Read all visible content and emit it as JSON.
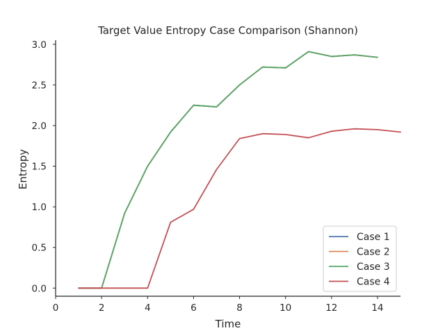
{
  "chart_data": {
    "type": "line",
    "title": "Target Value Entropy Case Comparison (Shannon)",
    "xlabel": "Time",
    "ylabel": "Entropy",
    "xlim": [
      0,
      15
    ],
    "ylim": [
      -0.1,
      3.05
    ],
    "xticks": [
      0,
      2,
      4,
      6,
      8,
      10,
      12,
      14
    ],
    "yticks": [
      0.0,
      0.5,
      1.0,
      1.5,
      2.0,
      2.5,
      3.0
    ],
    "ytick_labels": [
      "0.0",
      "0.5",
      "1.0",
      "1.5",
      "2.0",
      "2.5",
      "3.0"
    ],
    "grid": false,
    "legend": "bottom-right",
    "series": [
      {
        "name": "Case 1",
        "color": "#4c72b0",
        "x": [
          1,
          2,
          3,
          4,
          5,
          6,
          7,
          8,
          9,
          10,
          11,
          12,
          13,
          14
        ],
        "y": [
          0.0,
          0.0,
          0.92,
          1.5,
          1.92,
          2.25,
          2.23,
          2.5,
          2.72,
          2.71,
          2.91,
          2.85,
          2.87,
          2.84
        ]
      },
      {
        "name": "Case 2",
        "color": "#dd8452",
        "x": [
          1,
          2,
          3,
          4,
          5,
          6,
          7,
          8,
          9,
          10,
          11,
          12,
          13,
          14
        ],
        "y": [
          0.0,
          0.0,
          0.92,
          1.5,
          1.92,
          2.25,
          2.23,
          2.5,
          2.72,
          2.71,
          2.91,
          2.85,
          2.87,
          2.84
        ]
      },
      {
        "name": "Case 3",
        "color": "#55a868",
        "x": [
          1,
          2,
          3,
          4,
          5,
          6,
          7,
          8,
          9,
          10,
          11,
          12,
          13,
          14
        ],
        "y": [
          0.0,
          0.0,
          0.92,
          1.5,
          1.92,
          2.25,
          2.23,
          2.5,
          2.72,
          2.71,
          2.91,
          2.85,
          2.87,
          2.84
        ]
      },
      {
        "name": "Case 4",
        "color": "#c44e52",
        "x": [
          1,
          2,
          3,
          4,
          5,
          6,
          7,
          8,
          9,
          10,
          11,
          12,
          13,
          14,
          15
        ],
        "y": [
          0.0,
          0.0,
          0.0,
          0.0,
          0.81,
          0.97,
          1.46,
          1.84,
          1.9,
          1.89,
          1.85,
          1.93,
          1.96,
          1.95,
          1.92
        ]
      }
    ]
  }
}
